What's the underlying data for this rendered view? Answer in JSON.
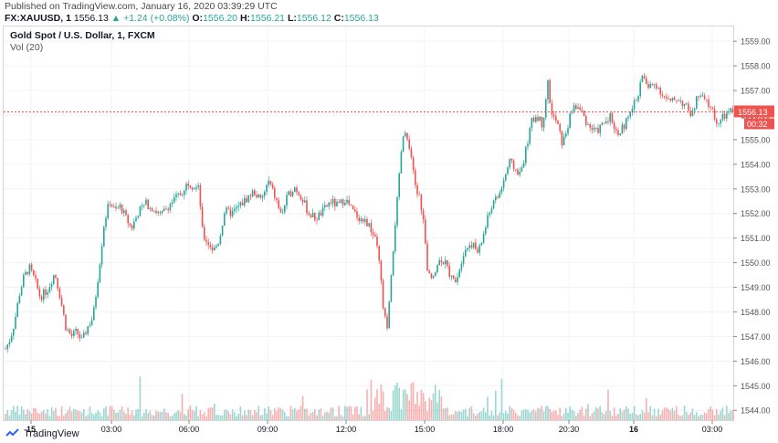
{
  "header": {
    "published": "Published on TradingView.com, January 16, 2020 03:39:29 UTC",
    "symbol": "FX:XAUUSD, 1",
    "last": "1556.13",
    "change": "+1.24 (+0.08%)",
    "open": "1556.20",
    "high": "1556.21",
    "low": "1556.12",
    "close": "1556.13"
  },
  "legend": {
    "title": "Gold Spot / U.S. Dollar, 1, FXCM",
    "volume": "Vol (20)"
  },
  "price_tag": {
    "value": "1556.13",
    "countdown": "00:32"
  },
  "footer": {
    "brand": "TradingView"
  },
  "colors": {
    "up": "#26a69a",
    "down": "#ef5350",
    "grid": "#f0f3fa",
    "price_line": "#ef5350"
  },
  "chart_data": {
    "type": "candlestick",
    "title": "Gold Spot / U.S. Dollar, 1, FXCM",
    "ylim": [
      1543.6,
      1559.6
    ],
    "y_ticks": [
      "1559.00",
      "1558.00",
      "1557.00",
      "1556.00",
      "1555.00",
      "1554.00",
      "1553.00",
      "1552.00",
      "1551.00",
      "1550.00",
      "1549.00",
      "1548.00",
      "1547.00",
      "1546.00",
      "1545.00",
      "1544.00"
    ],
    "x_ticks": [
      "15",
      "03:00",
      "06:00",
      "09:00",
      "12:00",
      "15:00",
      "18:00",
      "20:30",
      "16",
      "03:00"
    ],
    "last_price": 1556.13,
    "price_path": [
      {
        "t": 0,
        "p": 1546.5
      },
      {
        "t": 5,
        "p": 1546.9
      },
      {
        "t": 10,
        "p": 1547.6
      },
      {
        "t": 15,
        "p": 1548.7
      },
      {
        "t": 20,
        "p": 1549.4
      },
      {
        "t": 26,
        "p": 1549.8
      },
      {
        "t": 32,
        "p": 1549.3
      },
      {
        "t": 38,
        "p": 1548.6
      },
      {
        "t": 46,
        "p": 1548.9
      },
      {
        "t": 54,
        "p": 1549.6
      },
      {
        "t": 60,
        "p": 1548.6
      },
      {
        "t": 66,
        "p": 1547.4
      },
      {
        "t": 72,
        "p": 1547.0
      },
      {
        "t": 78,
        "p": 1547.2
      },
      {
        "t": 84,
        "p": 1546.8
      },
      {
        "t": 90,
        "p": 1547.4
      },
      {
        "t": 96,
        "p": 1547.8
      },
      {
        "t": 102,
        "p": 1549.6
      },
      {
        "t": 108,
        "p": 1551.6
      },
      {
        "t": 114,
        "p": 1552.5
      },
      {
        "t": 120,
        "p": 1552.1
      },
      {
        "t": 126,
        "p": 1552.3
      },
      {
        "t": 132,
        "p": 1551.8
      },
      {
        "t": 138,
        "p": 1551.4
      },
      {
        "t": 146,
        "p": 1552.1
      },
      {
        "t": 154,
        "p": 1552.4
      },
      {
        "t": 162,
        "p": 1552.2
      },
      {
        "t": 170,
        "p": 1551.9
      },
      {
        "t": 178,
        "p": 1552.3
      },
      {
        "t": 186,
        "p": 1552.6
      },
      {
        "t": 194,
        "p": 1552.9
      },
      {
        "t": 200,
        "p": 1553.3
      },
      {
        "t": 206,
        "p": 1553.1
      },
      {
        "t": 212,
        "p": 1553.0
      },
      {
        "t": 216,
        "p": 1551.1
      },
      {
        "t": 222,
        "p": 1550.8
      },
      {
        "t": 228,
        "p": 1550.5
      },
      {
        "t": 234,
        "p": 1550.9
      },
      {
        "t": 240,
        "p": 1552.1
      },
      {
        "t": 248,
        "p": 1552.0
      },
      {
        "t": 256,
        "p": 1552.3
      },
      {
        "t": 264,
        "p": 1552.6
      },
      {
        "t": 272,
        "p": 1552.9
      },
      {
        "t": 280,
        "p": 1552.5
      },
      {
        "t": 288,
        "p": 1553.3
      },
      {
        "t": 296,
        "p": 1552.6
      },
      {
        "t": 302,
        "p": 1551.9
      },
      {
        "t": 308,
        "p": 1552.6
      },
      {
        "t": 316,
        "p": 1553.1
      },
      {
        "t": 324,
        "p": 1552.7
      },
      {
        "t": 332,
        "p": 1552.0
      },
      {
        "t": 340,
        "p": 1551.8
      },
      {
        "t": 348,
        "p": 1552.1
      },
      {
        "t": 356,
        "p": 1552.5
      },
      {
        "t": 364,
        "p": 1552.3
      },
      {
        "t": 372,
        "p": 1552.6
      },
      {
        "t": 380,
        "p": 1552.1
      },
      {
        "t": 388,
        "p": 1551.8
      },
      {
        "t": 396,
        "p": 1551.6
      },
      {
        "t": 402,
        "p": 1551.2
      },
      {
        "t": 406,
        "p": 1550.8
      },
      {
        "t": 410,
        "p": 1549.8
      },
      {
        "t": 414,
        "p": 1548.0
      },
      {
        "t": 418,
        "p": 1547.3
      },
      {
        "t": 422,
        "p": 1549.1
      },
      {
        "t": 426,
        "p": 1551.3
      },
      {
        "t": 430,
        "p": 1552.9
      },
      {
        "t": 434,
        "p": 1554.8
      },
      {
        "t": 438,
        "p": 1555.3
      },
      {
        "t": 442,
        "p": 1554.6
      },
      {
        "t": 446,
        "p": 1553.8
      },
      {
        "t": 450,
        "p": 1552.9
      },
      {
        "t": 454,
        "p": 1552.6
      },
      {
        "t": 458,
        "p": 1551.6
      },
      {
        "t": 462,
        "p": 1549.6
      },
      {
        "t": 466,
        "p": 1549.3
      },
      {
        "t": 472,
        "p": 1549.9
      },
      {
        "t": 478,
        "p": 1550.2
      },
      {
        "t": 484,
        "p": 1549.8
      },
      {
        "t": 490,
        "p": 1549.2
      },
      {
        "t": 496,
        "p": 1549.6
      },
      {
        "t": 502,
        "p": 1550.5
      },
      {
        "t": 510,
        "p": 1550.8
      },
      {
        "t": 518,
        "p": 1550.4
      },
      {
        "t": 526,
        "p": 1551.5
      },
      {
        "t": 532,
        "p": 1552.3
      },
      {
        "t": 540,
        "p": 1552.7
      },
      {
        "t": 546,
        "p": 1553.4
      },
      {
        "t": 552,
        "p": 1554.1
      },
      {
        "t": 558,
        "p": 1553.8
      },
      {
        "t": 564,
        "p": 1553.6
      },
      {
        "t": 570,
        "p": 1554.6
      },
      {
        "t": 576,
        "p": 1555.7
      },
      {
        "t": 582,
        "p": 1556.0
      },
      {
        "t": 588,
        "p": 1555.6
      },
      {
        "t": 594,
        "p": 1557.3
      },
      {
        "t": 598,
        "p": 1556.0
      },
      {
        "t": 604,
        "p": 1555.7
      },
      {
        "t": 610,
        "p": 1554.8
      },
      {
        "t": 616,
        "p": 1555.6
      },
      {
        "t": 622,
        "p": 1556.4
      },
      {
        "t": 630,
        "p": 1556.2
      },
      {
        "t": 638,
        "p": 1555.6
      },
      {
        "t": 646,
        "p": 1555.3
      },
      {
        "t": 654,
        "p": 1555.6
      },
      {
        "t": 662,
        "p": 1556.0
      },
      {
        "t": 670,
        "p": 1555.2
      },
      {
        "t": 678,
        "p": 1555.6
      },
      {
        "t": 686,
        "p": 1556.2
      },
      {
        "t": 692,
        "p": 1556.8
      },
      {
        "t": 698,
        "p": 1557.6
      },
      {
        "t": 704,
        "p": 1557.1
      },
      {
        "t": 712,
        "p": 1557.3
      },
      {
        "t": 720,
        "p": 1556.8
      },
      {
        "t": 728,
        "p": 1556.5
      },
      {
        "t": 736,
        "p": 1556.7
      },
      {
        "t": 744,
        "p": 1556.4
      },
      {
        "t": 752,
        "p": 1556.0
      },
      {
        "t": 758,
        "p": 1556.8
      },
      {
        "t": 766,
        "p": 1556.6
      },
      {
        "t": 774,
        "p": 1556.2
      },
      {
        "t": 780,
        "p": 1555.6
      },
      {
        "t": 786,
        "p": 1555.9
      },
      {
        "t": 792,
        "p": 1556.1
      },
      {
        "t": 797,
        "p": 1556.13
      }
    ]
  }
}
